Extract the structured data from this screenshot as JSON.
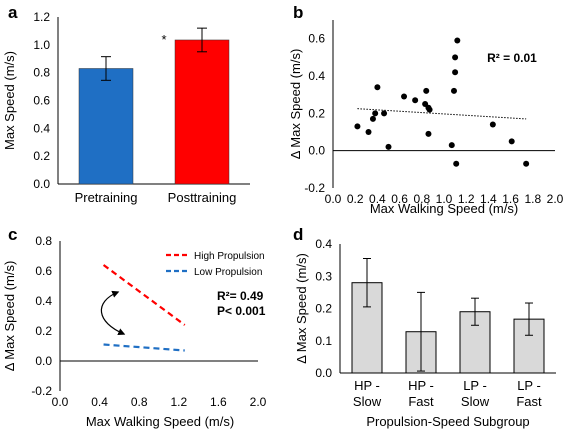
{
  "chart_data": [
    {
      "panel": "a",
      "type": "bar",
      "categories": [
        "Pretraining",
        "Posttraining"
      ],
      "values": [
        0.83,
        1.035
      ],
      "errors": [
        0.085,
        0.085
      ],
      "colors": [
        "#1F6FC4",
        "#FF0000"
      ],
      "ylabel": "Max Speed (m/s)",
      "xlabel": "",
      "ylim": [
        0,
        1.2
      ],
      "yticks": [
        "0.0",
        "0.2",
        "0.4",
        "0.6",
        "0.8",
        "1.0",
        "1.2"
      ],
      "annotation": "*"
    },
    {
      "panel": "b",
      "type": "scatter",
      "xlabel": "Max Walking Speed (m/s)",
      "ylabel": "Δ Max Speed (m/s)",
      "xlim": [
        0,
        2
      ],
      "ylim": [
        -0.2,
        0.7
      ],
      "xticks": [
        "0.0",
        "0.2",
        "0.4",
        "0.6",
        "0.8",
        "1.0",
        "1.2",
        "1.4",
        "1.6",
        "1.8",
        "2.0"
      ],
      "yticks": [
        "-0.2",
        "0.0",
        "0.2",
        "0.4",
        "0.6"
      ],
      "points": [
        [
          0.22,
          0.13
        ],
        [
          0.32,
          0.1
        ],
        [
          0.36,
          0.17
        ],
        [
          0.38,
          0.2
        ],
        [
          0.4,
          0.34
        ],
        [
          0.46,
          0.2
        ],
        [
          0.5,
          0.02
        ],
        [
          0.64,
          0.29
        ],
        [
          0.74,
          0.27
        ],
        [
          0.83,
          0.25
        ],
        [
          0.84,
          0.32
        ],
        [
          0.86,
          0.23
        ],
        [
          0.86,
          0.09
        ],
        [
          0.87,
          0.22
        ],
        [
          1.07,
          0.03
        ],
        [
          1.09,
          0.32
        ],
        [
          1.1,
          0.42
        ],
        [
          1.1,
          0.5
        ],
        [
          1.12,
          0.59
        ],
        [
          1.11,
          -0.07
        ],
        [
          1.44,
          0.14
        ],
        [
          1.61,
          0.05
        ],
        [
          1.74,
          -0.07
        ]
      ],
      "trendline": [
        [
          0.22,
          0.225
        ],
        [
          1.74,
          0.17
        ]
      ],
      "annotation": "R² = 0.01"
    },
    {
      "panel": "c",
      "type": "line",
      "xlabel": "Max Walking Speed (m/s)",
      "ylabel": "Δ Max Speed (m/s)",
      "xlim": [
        0,
        2
      ],
      "ylim": [
        -0.2,
        0.8
      ],
      "xticks": [
        "0.0",
        "0.4",
        "0.8",
        "1.2",
        "1.6",
        "2.0"
      ],
      "yticks": [
        "-0.2",
        "0.0",
        "0.2",
        "0.4",
        "0.6",
        "0.8"
      ],
      "series": [
        {
          "name": "High Propulsion",
          "color": "#FF0000",
          "points": [
            [
              0.44,
              0.64
            ],
            [
              1.26,
              0.24
            ]
          ]
        },
        {
          "name": "Low Propulsion",
          "color": "#1F6FC4",
          "points": [
            [
              0.44,
              0.11
            ],
            [
              1.26,
              0.07
            ]
          ]
        }
      ],
      "annotation": [
        "R²= 0.49",
        "P< 0.001"
      ]
    },
    {
      "panel": "d",
      "type": "bar",
      "categories": [
        [
          "HP -",
          "Slow"
        ],
        [
          "HP -",
          "Fast"
        ],
        [
          "LP -",
          "Slow"
        ],
        [
          "LP -",
          "Fast"
        ]
      ],
      "values": [
        0.28,
        0.128,
        0.19,
        0.167
      ],
      "errors": [
        0.075,
        0.122,
        0.042,
        0.05
      ],
      "color": "#D9D9D9",
      "xlabel": "Propulsion-Speed Subgroup",
      "ylabel": "Δ Max Speed (m/s)",
      "ylim": [
        0,
        0.4
      ],
      "yticks": [
        "0.0",
        "0.1",
        "0.2",
        "0.3",
        "0.4"
      ]
    }
  ]
}
